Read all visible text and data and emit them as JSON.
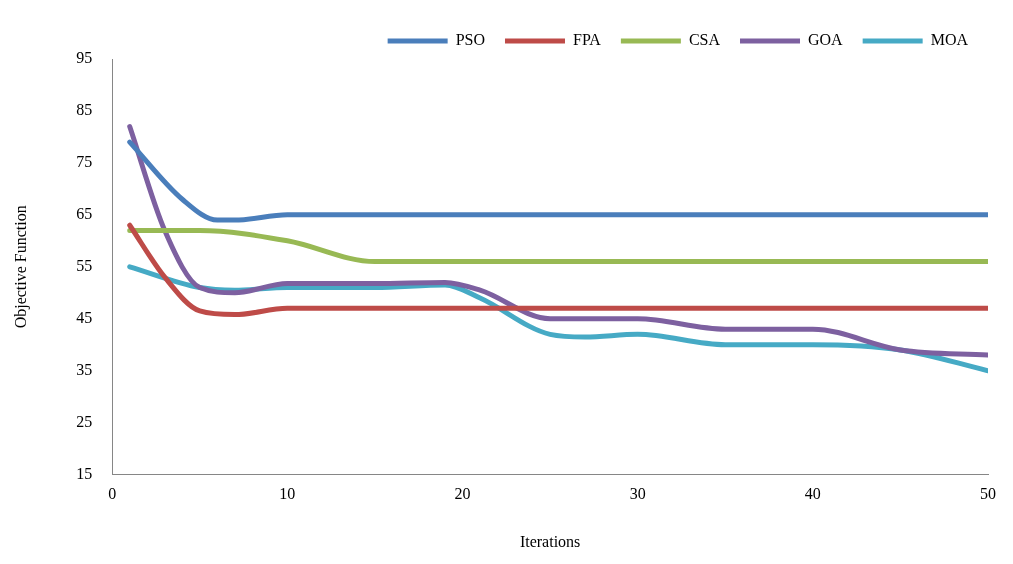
{
  "chart_data": {
    "type": "line",
    "xlabel": "Iterations",
    "ylabel": "Objective Function",
    "xlim": [
      0,
      50
    ],
    "xticks": [
      0,
      10,
      20,
      30,
      40,
      50
    ],
    "ylim": [
      15,
      95
    ],
    "yticks": [
      15,
      25,
      35,
      45,
      55,
      65,
      75,
      85,
      95
    ],
    "grid": false,
    "legend": "top right",
    "marker": "none",
    "line_style": "solid",
    "series": [
      {
        "name": "PSO",
        "color": "#4a7ebb",
        "x": [
          1,
          4,
          6,
          7,
          10,
          20,
          30,
          40,
          50
        ],
        "values": [
          79,
          68,
          64,
          64,
          65,
          65,
          65,
          65,
          65
        ]
      },
      {
        "name": "FPA",
        "color": "#be4b48",
        "x": [
          1,
          3,
          5,
          7,
          10,
          20,
          30,
          40,
          50
        ],
        "values": [
          63,
          53,
          46.5,
          45.8,
          47,
          47,
          47,
          47,
          47
        ]
      },
      {
        "name": "CSA",
        "color": "#98b954",
        "x": [
          1,
          5,
          10,
          15,
          20,
          30,
          40,
          50
        ],
        "values": [
          62,
          62,
          60,
          56,
          56,
          56,
          56,
          56
        ]
      },
      {
        "name": "GOA",
        "color": "#7d60a0",
        "x": [
          1,
          3,
          5,
          7,
          10,
          15,
          19,
          21,
          25,
          30,
          35,
          40,
          45,
          50
        ],
        "values": [
          82,
          62,
          51,
          50,
          51.8,
          51.8,
          52,
          50.5,
          45,
          45,
          43,
          43,
          39,
          38
        ]
      },
      {
        "name": "MOA",
        "color": "#46aac5",
        "x": [
          1,
          5,
          7,
          10,
          15,
          19,
          21,
          25,
          27,
          30,
          35,
          40,
          45,
          50
        ],
        "values": [
          55,
          51,
          50.5,
          51,
          51,
          51.5,
          49,
          42,
          41.5,
          42,
          40,
          40,
          39,
          35
        ]
      }
    ]
  }
}
